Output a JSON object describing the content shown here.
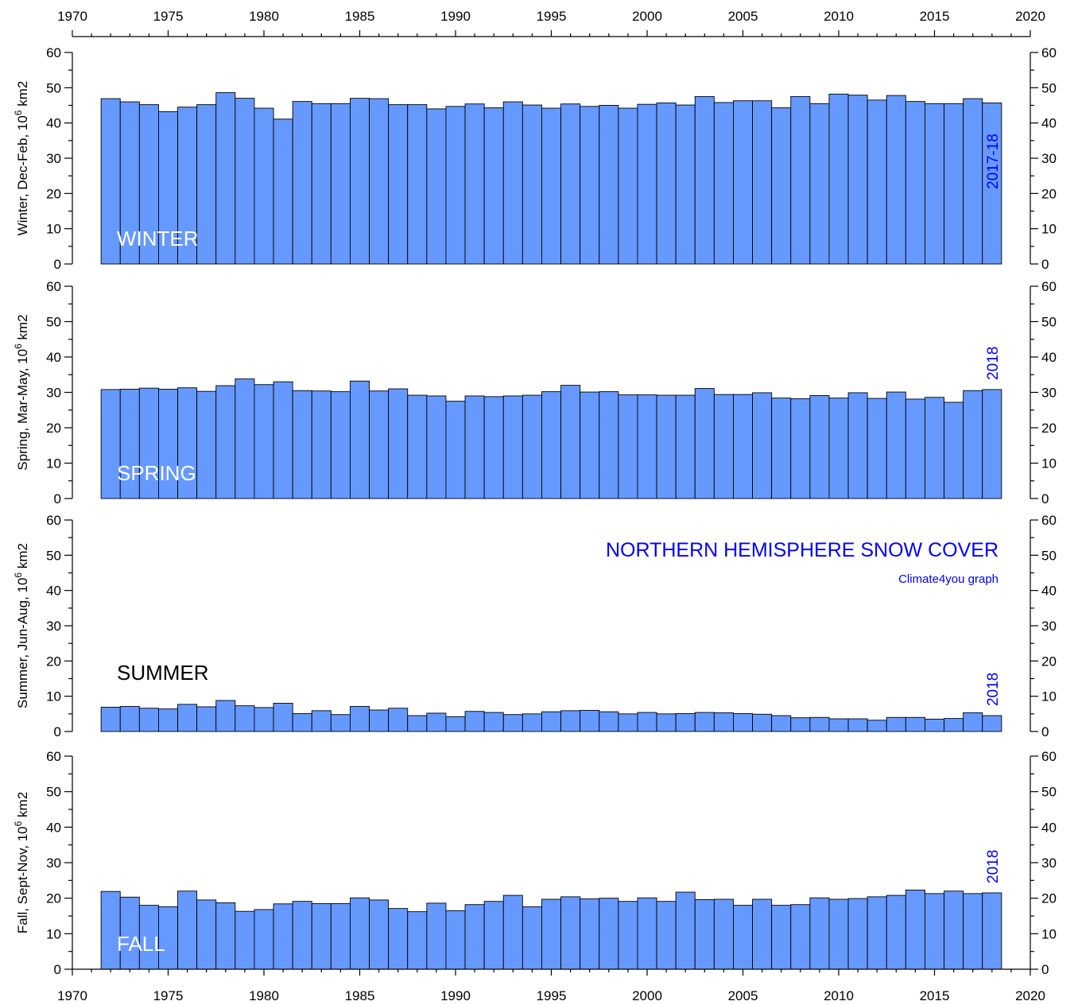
{
  "figure": {
    "title": "NORTHERN HEMISPHERE SNOW COVER",
    "credit": "Climate4you graph",
    "colors": {
      "bar_fill": "#6699ff",
      "bar_stroke": "#000000",
      "annotation_blue": "#0000ff",
      "axis": "#000000"
    }
  },
  "chart_data": [
    {
      "type": "bar",
      "panel": "winter",
      "season_label": "WINTER",
      "season_label_color": "#ffffff",
      "latest_label": "2017-18",
      "ylabel": "Winter, Dec-Feb, 10",
      "ylabel_sup": "6",
      "ylabel_unit": " km2",
      "xlim": [
        1970,
        2020
      ],
      "ylim": [
        0,
        60
      ],
      "x_ticks": [
        1970,
        1975,
        1980,
        1985,
        1990,
        1995,
        2000,
        2005,
        2010,
        2015,
        2020
      ],
      "y_ticks": [
        0,
        10,
        20,
        30,
        40,
        50,
        60
      ],
      "x": [
        1972,
        1973,
        1974,
        1975,
        1976,
        1977,
        1978,
        1979,
        1980,
        1981,
        1982,
        1983,
        1984,
        1985,
        1986,
        1987,
        1988,
        1989,
        1990,
        1991,
        1992,
        1993,
        1994,
        1995,
        1996,
        1997,
        1998,
        1999,
        2000,
        2001,
        2002,
        2003,
        2004,
        2005,
        2006,
        2007,
        2008,
        2009,
        2010,
        2011,
        2012,
        2013,
        2014,
        2015,
        2016,
        2017,
        2018
      ],
      "values": [
        46.9,
        46.0,
        45.2,
        43.2,
        44.5,
        45.2,
        48.6,
        47.0,
        44.2,
        41.1,
        46.1,
        45.5,
        45.5,
        47.0,
        46.9,
        45.2,
        45.2,
        44.0,
        44.7,
        45.4,
        44.3,
        46.0,
        45.1,
        44.2,
        45.4,
        44.7,
        45.0,
        44.2,
        45.3,
        45.7,
        45.1,
        47.5,
        45.8,
        46.3,
        46.3,
        44.3,
        47.5,
        45.5,
        48.2,
        47.9,
        46.5,
        47.8,
        46.1,
        45.5,
        45.5,
        46.9,
        45.7
      ]
    },
    {
      "type": "bar",
      "panel": "spring",
      "season_label": "SPRING",
      "season_label_color": "#ffffff",
      "latest_label": "2018",
      "ylabel": "Spring, Mar-May, 10",
      "ylabel_sup": "6",
      "ylabel_unit": " km2",
      "xlim": [
        1970,
        2020
      ],
      "ylim": [
        0,
        60
      ],
      "x_ticks": [
        1970,
        1975,
        1980,
        1985,
        1990,
        1995,
        2000,
        2005,
        2010,
        2015,
        2020
      ],
      "y_ticks": [
        0,
        10,
        20,
        30,
        40,
        50,
        60
      ],
      "x": [
        1972,
        1973,
        1974,
        1975,
        1976,
        1977,
        1978,
        1979,
        1980,
        1981,
        1982,
        1983,
        1984,
        1985,
        1986,
        1987,
        1988,
        1989,
        1990,
        1991,
        1992,
        1993,
        1994,
        1995,
        1996,
        1997,
        1998,
        1999,
        2000,
        2001,
        2002,
        2003,
        2004,
        2005,
        2006,
        2007,
        2008,
        2009,
        2010,
        2011,
        2012,
        2013,
        2014,
        2015,
        2016,
        2017,
        2018
      ],
      "values": [
        30.8,
        30.9,
        31.2,
        30.9,
        31.3,
        30.3,
        31.9,
        33.8,
        32.2,
        33.0,
        30.5,
        30.4,
        30.2,
        33.2,
        30.4,
        31.0,
        29.2,
        29.0,
        27.5,
        29.0,
        28.8,
        29.0,
        29.2,
        30.2,
        32.0,
        30.1,
        30.2,
        29.3,
        29.3,
        29.2,
        29.2,
        31.1,
        29.4,
        29.4,
        29.9,
        28.4,
        28.2,
        29.1,
        28.4,
        29.9,
        28.3,
        30.1,
        28.1,
        28.6,
        27.2,
        30.5,
        30.8
      ]
    },
    {
      "type": "bar",
      "panel": "summer",
      "season_label": "SUMMER",
      "season_label_color": "#000000",
      "latest_label": "2018",
      "ylabel": "Summer, Jun-Aug, 10",
      "ylabel_sup": "6",
      "ylabel_unit": " km2",
      "xlim": [
        1970,
        2020
      ],
      "ylim": [
        0,
        60
      ],
      "x_ticks": [
        1970,
        1975,
        1980,
        1985,
        1990,
        1995,
        2000,
        2005,
        2010,
        2015,
        2020
      ],
      "y_ticks": [
        0,
        10,
        20,
        30,
        40,
        50,
        60
      ],
      "x": [
        1972,
        1973,
        1974,
        1975,
        1976,
        1977,
        1978,
        1979,
        1980,
        1981,
        1982,
        1983,
        1984,
        1985,
        1986,
        1987,
        1988,
        1989,
        1990,
        1991,
        1992,
        1993,
        1994,
        1995,
        1996,
        1997,
        1998,
        1999,
        2000,
        2001,
        2002,
        2003,
        2004,
        2005,
        2006,
        2007,
        2008,
        2009,
        2010,
        2011,
        2012,
        2013,
        2014,
        2015,
        2016,
        2017,
        2018
      ],
      "values": [
        6.9,
        7.1,
        6.6,
        6.4,
        7.7,
        7.0,
        8.8,
        7.3,
        6.8,
        8.0,
        5.1,
        5.9,
        4.8,
        7.1,
        6.1,
        6.6,
        4.5,
        5.2,
        4.2,
        5.7,
        5.4,
        4.8,
        5.0,
        5.6,
        5.9,
        6.0,
        5.6,
        5.0,
        5.4,
        5.0,
        5.1,
        5.4,
        5.3,
        5.1,
        4.9,
        4.5,
        3.9,
        4.0,
        3.6,
        3.6,
        3.2,
        4.0,
        4.0,
        3.5,
        3.7,
        5.3,
        4.5
      ]
    },
    {
      "type": "bar",
      "panel": "fall",
      "season_label": "FALL",
      "season_label_color": "#ffffff",
      "latest_label": "2018",
      "ylabel": "Fall, Sept-Nov, 10",
      "ylabel_sup": "6",
      "ylabel_unit": " km2",
      "xlim": [
        1970,
        2020
      ],
      "ylim": [
        0,
        60
      ],
      "x_ticks": [
        1970,
        1975,
        1980,
        1985,
        1990,
        1995,
        2000,
        2005,
        2010,
        2015,
        2020
      ],
      "y_ticks": [
        0,
        10,
        20,
        30,
        40,
        50,
        60
      ],
      "x": [
        1972,
        1973,
        1974,
        1975,
        1976,
        1977,
        1978,
        1979,
        1980,
        1981,
        1982,
        1983,
        1984,
        1985,
        1986,
        1987,
        1988,
        1989,
        1990,
        1991,
        1992,
        1993,
        1994,
        1995,
        1996,
        1997,
        1998,
        1999,
        2000,
        2001,
        2002,
        2003,
        2004,
        2005,
        2006,
        2007,
        2008,
        2009,
        2010,
        2011,
        2012,
        2013,
        2014,
        2015,
        2016,
        2017,
        2018
      ],
      "values": [
        21.9,
        20.3,
        18.0,
        17.6,
        22.0,
        19.5,
        18.7,
        16.3,
        16.8,
        18.4,
        19.1,
        18.5,
        18.5,
        20.1,
        19.5,
        17.1,
        16.2,
        18.6,
        16.5,
        18.2,
        19.1,
        20.8,
        17.6,
        19.7,
        20.4,
        19.8,
        20.0,
        19.1,
        20.1,
        19.1,
        21.7,
        19.6,
        19.7,
        18.0,
        19.7,
        18.0,
        18.2,
        20.1,
        19.7,
        19.9,
        20.4,
        20.8,
        22.3,
        21.3,
        22.0,
        21.3,
        21.5
      ]
    }
  ]
}
